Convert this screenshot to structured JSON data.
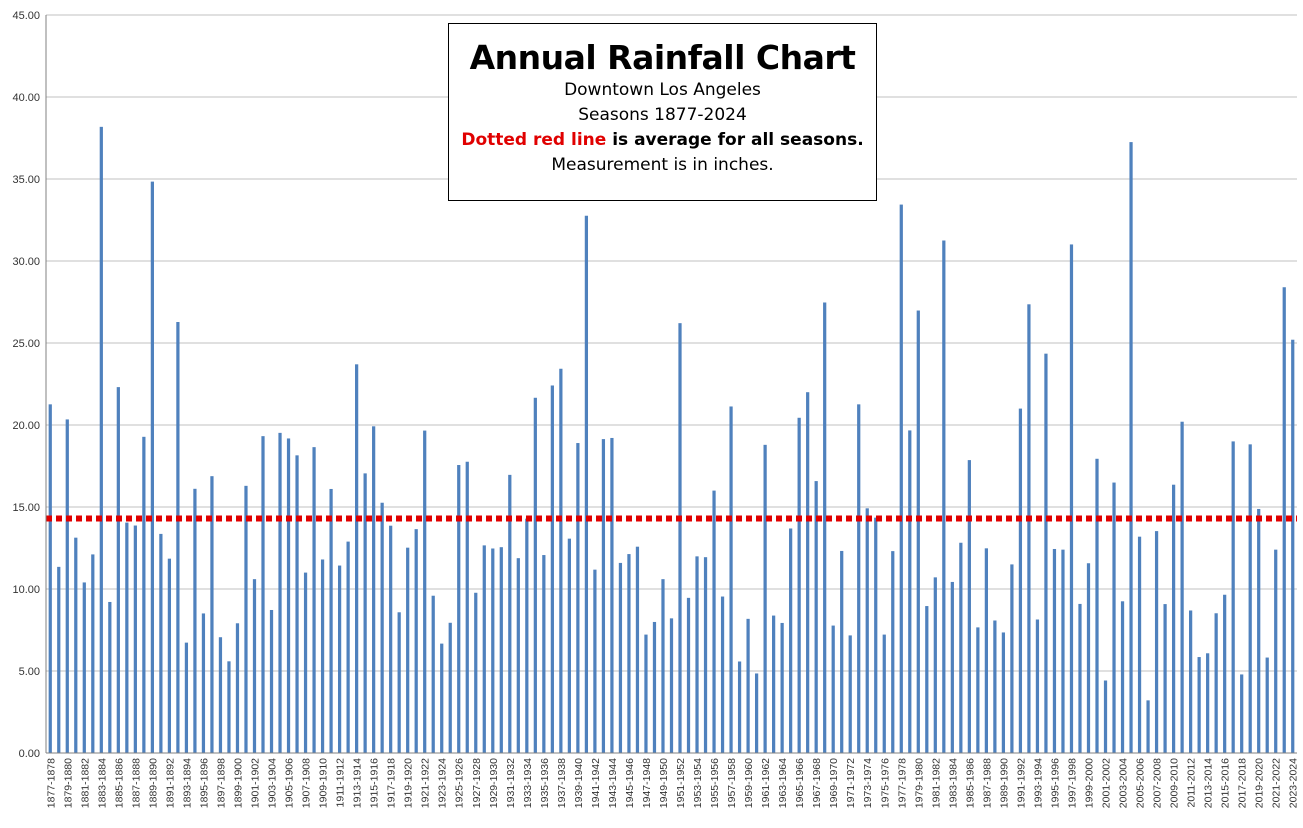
{
  "chart_data": {
    "type": "bar",
    "title": "Annual Rainfall Chart",
    "subtitle_lines": [
      "Downtown Los Angeles",
      "Seasons  1877-2024"
    ],
    "legend_note": {
      "red_part": "Dotted red line",
      "rest": " is average for all seasons."
    },
    "unit_note": "Measurement  is in inches.",
    "ylim": [
      0,
      45
    ],
    "yticks": [
      "0.00",
      "5.00",
      "10.00",
      "15.00",
      "20.00",
      "25.00",
      "30.00",
      "35.00",
      "40.00",
      "45.00"
    ],
    "ytick_values": [
      0,
      5,
      10,
      15,
      20,
      25,
      30,
      35,
      40,
      45
    ],
    "grid": true,
    "average": 14.3,
    "colors": {
      "bar": "#4f81bd",
      "average_line": "#e00000",
      "grid": "#c0c0c0",
      "axis": "#808080"
    },
    "start_season": 1877,
    "values": [
      21.26,
      11.35,
      20.34,
      13.13,
      10.4,
      12.11,
      38.18,
      9.21,
      22.31,
      14.05,
      13.87,
      19.28,
      34.84,
      13.36,
      11.85,
      26.28,
      6.73,
      16.11,
      8.51,
      16.88,
      7.06,
      5.59,
      7.91,
      16.29,
      10.6,
      19.32,
      8.72,
      19.52,
      19.18,
      18.15,
      11.0,
      18.65,
      11.8,
      16.1,
      11.43,
      12.89,
      23.7,
      17.05,
      19.92,
      15.26,
      13.86,
      8.58,
      12.52,
      13.65,
      19.66,
      9.59,
      6.67,
      7.94,
      17.56,
      17.76,
      9.77,
      12.66,
      12.47,
      12.55,
      16.96,
      11.88,
      14.29,
      21.66,
      12.07,
      22.41,
      23.43,
      13.07,
      18.9,
      32.76,
      11.18,
      19.14,
      19.21,
      11.59,
      12.13,
      12.58,
      7.22,
      7.99,
      10.6,
      8.21,
      26.21,
      9.46,
      11.99,
      11.94,
      16.0,
      9.54,
      21.13,
      5.58,
      8.18,
      4.85,
      18.79,
      8.38,
      7.93,
      13.69,
      20.44,
      22.0,
      16.58,
      27.47,
      7.77,
      12.32,
      7.17,
      21.26,
      14.92,
      14.35,
      7.22,
      12.31,
      33.44,
      19.67,
      26.98,
      8.96,
      10.71,
      31.25,
      10.43,
      12.82,
      17.86,
      7.66,
      12.48,
      8.08,
      7.35,
      11.5,
      21.0,
      27.36,
      8.14,
      24.35,
      12.44,
      12.4,
      31.01,
      9.09,
      11.57,
      17.94,
      4.42,
      16.49,
      9.25,
      37.25,
      13.19,
      3.21,
      13.53,
      9.08,
      16.36,
      20.2,
      8.69,
      5.85,
      6.08,
      8.52,
      9.65,
      19.0,
      4.79,
      18.82,
      14.88,
      5.82,
      12.4,
      28.4,
      25.2
    ],
    "x_tick_labels": [
      "1877-1878",
      "1879-1880",
      "1881-1882",
      "1883-1884",
      "1885-1886",
      "1887-1888",
      "1889-1890",
      "1891-1892",
      "1893-1894",
      "1895-1896",
      "1897-1898",
      "1899-1900",
      "1901-1902",
      "1903-1904",
      "1905-1906",
      "1907-1908",
      "1909-1910",
      "1911-1912",
      "1913-1914",
      "1915-1916",
      "1917-1918",
      "1919-1920",
      "1921-1922",
      "1923-1924",
      "1925-1926",
      "1927-1928",
      "1929-1930",
      "1931-1932",
      "1933-1934",
      "1935-1936",
      "1937-1938",
      "1939-1940",
      "1941-1942",
      "1943-1944",
      "1945-1946",
      "1947-1948",
      "1949-1950",
      "1951-1952",
      "1953-1954",
      "1955-1956",
      "1957-1958",
      "1959-1960",
      "1961-1962",
      "1963-1964",
      "1965-1966",
      "1967-1968",
      "1969-1970",
      "1971-1972",
      "1973-1974",
      "1975-1976",
      "1977-1978",
      "1979-1980",
      "1981-1982",
      "1983-1984",
      "1985-1986",
      "1987-1988",
      "1989-1990",
      "1991-1992",
      "1993-1994",
      "1995-1996",
      "1997-1998",
      "1999-2000",
      "2001-2002",
      "2003-2004",
      "2005-2006",
      "2007-2008",
      "2009-2010",
      "2011-2012",
      "2013-2014",
      "2015-2016",
      "2017-2018",
      "2019-2020",
      "2021-2022",
      "2023-2024"
    ]
  }
}
